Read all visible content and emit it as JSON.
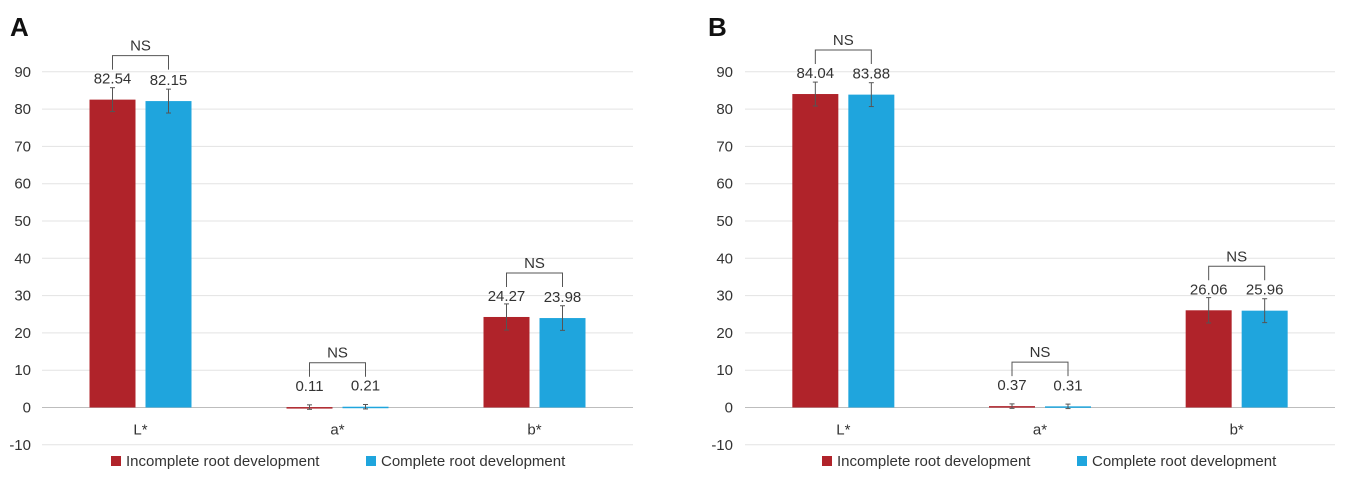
{
  "colors": {
    "incomplete": "#b0232a",
    "complete": "#1fa5dd"
  },
  "legend": {
    "incomplete": "Incomplete root development",
    "complete": "Complete root development"
  },
  "chart_data": [
    {
      "panel": "A",
      "type": "bar",
      "title": "",
      "xlabel": "",
      "ylabel": "",
      "categories": [
        "L*",
        "a*",
        "b*"
      ],
      "ylim": [
        -10,
        90
      ],
      "yticks": [
        -10,
        0,
        10,
        20,
        30,
        40,
        50,
        60,
        70,
        80,
        90
      ],
      "grid": true,
      "legend_position": "bottom",
      "series": [
        {
          "name": "Incomplete root development",
          "values": [
            82.54,
            0.11,
            24.27
          ],
          "labels": [
            "82.54",
            "0.11",
            "24.27"
          ],
          "errors": [
            3.2,
            0.6,
            3.5
          ]
        },
        {
          "name": "Complete root development",
          "values": [
            82.15,
            0.21,
            23.98
          ],
          "labels": [
            "82.15",
            "0.21",
            "23.98"
          ],
          "errors": [
            3.2,
            0.6,
            3.3
          ]
        }
      ],
      "significance": [
        "NS",
        "NS",
        "NS"
      ]
    },
    {
      "panel": "B",
      "type": "bar",
      "title": "",
      "xlabel": "",
      "ylabel": "",
      "categories": [
        "L*",
        "a*",
        "b*"
      ],
      "ylim": [
        -10,
        90
      ],
      "yticks": [
        -10,
        0,
        10,
        20,
        30,
        40,
        50,
        60,
        70,
        80,
        90
      ],
      "grid": true,
      "legend_position": "bottom",
      "series": [
        {
          "name": "Incomplete root development",
          "values": [
            84.04,
            0.37,
            26.06
          ],
          "labels": [
            "84.04",
            "0.37",
            "26.06"
          ],
          "errors": [
            3.2,
            0.6,
            3.4
          ]
        },
        {
          "name": "Complete root development",
          "values": [
            83.88,
            0.31,
            25.96
          ],
          "labels": [
            "83.88",
            "0.31",
            "25.96"
          ],
          "errors": [
            3.2,
            0.6,
            3.2
          ]
        }
      ],
      "significance": [
        "NS",
        "NS",
        "NS"
      ]
    }
  ]
}
